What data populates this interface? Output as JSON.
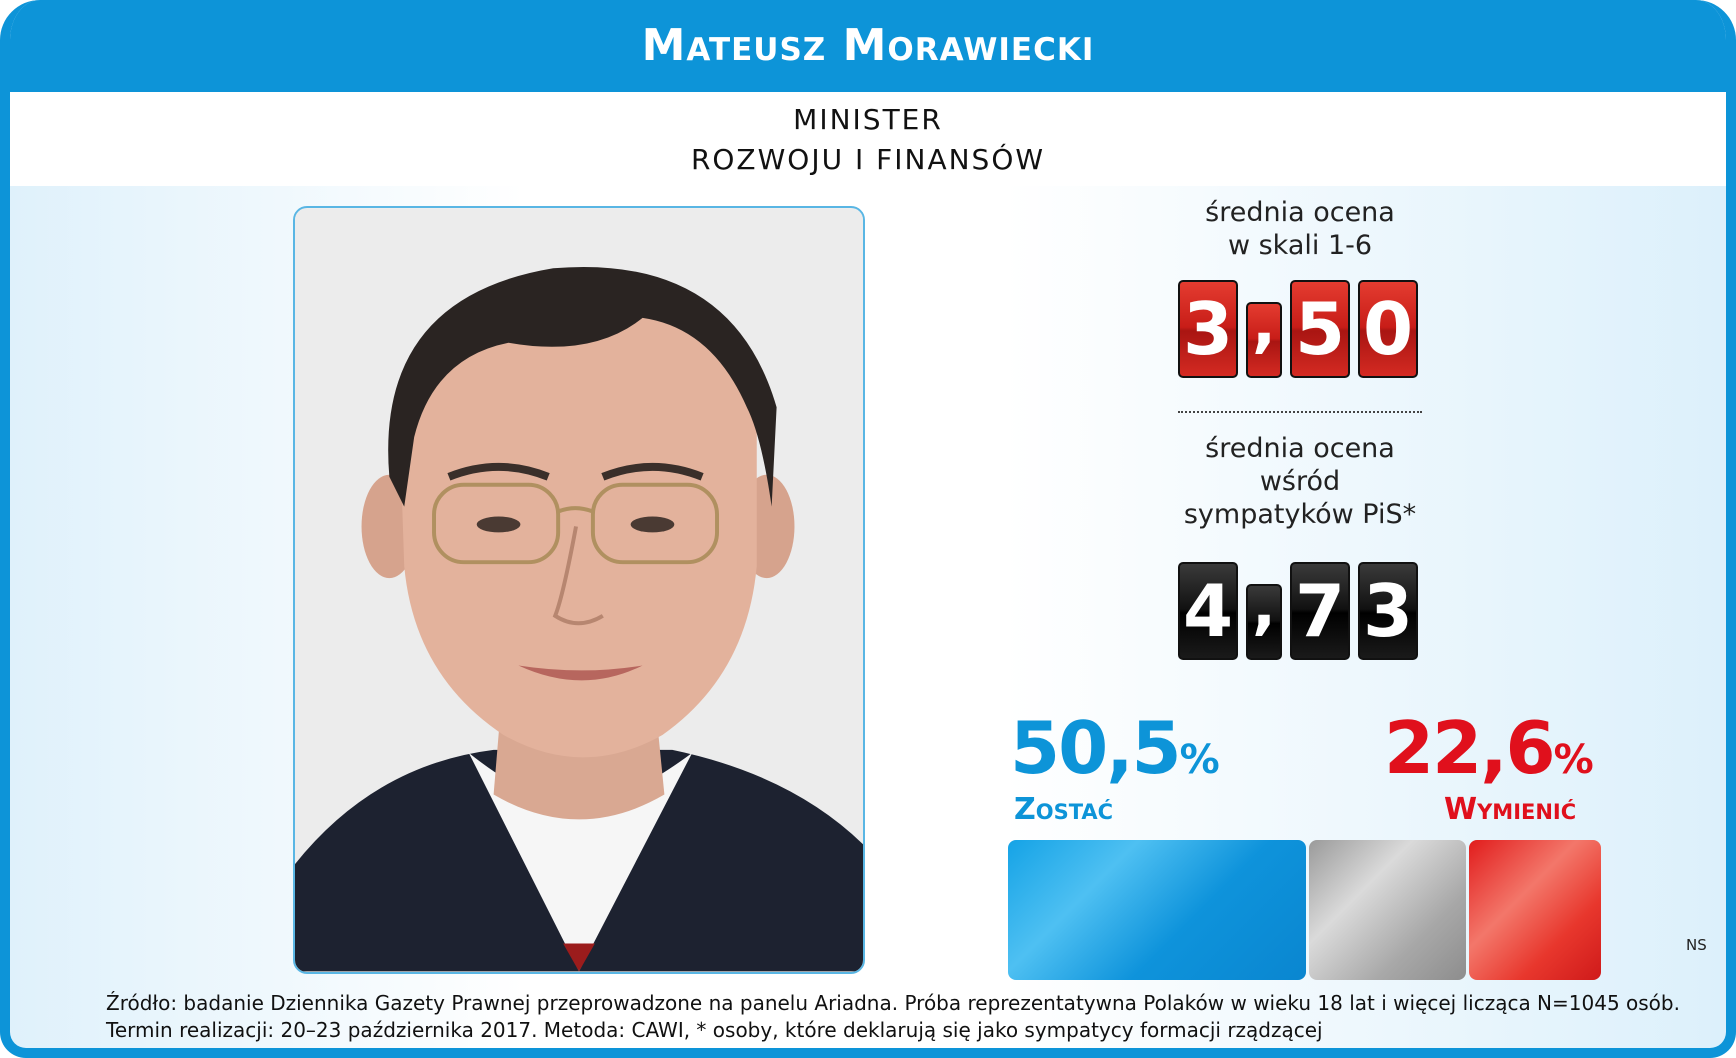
{
  "header": {
    "name": "Mateusz Morawiecki",
    "role_line1": "MINISTER",
    "role_line2": "ROZWOJU I FINANSÓW"
  },
  "rating": {
    "label_line1": "średnia ocena",
    "label_line2": "w skali 1-6",
    "value": "3,50",
    "digits": [
      "3",
      ",",
      "5",
      "0"
    ]
  },
  "rating_pis": {
    "label_line1": "średnia ocena",
    "label_line2": "wśród",
    "label_line3": "sympatyków PiS*",
    "value": "4,73",
    "digits": [
      "4",
      ",",
      "7",
      "3"
    ]
  },
  "stay": {
    "value": "50,5",
    "unit": "%",
    "label": "Zostać"
  },
  "replace": {
    "value": "22,6",
    "unit": "%",
    "label": "Wymienić"
  },
  "ns_label": "NS",
  "footer": {
    "line1": "Źródło: badanie Dziennika Gazety Prawnej przeprowadzone na panelu Ariadna. Próba reprezentatywna Polaków w wieku 18 lat i więcej licząca N=1045 osób.",
    "line2": "Termin realizacji: 20–23 października 2017. Metoda: CAWI, * osoby, które deklarują się jako sympatycy formacji rządzącej"
  },
  "colors": {
    "brand_blue": "#0d94d8",
    "red": "#e0101c",
    "grey": "#b0b0b0"
  }
}
